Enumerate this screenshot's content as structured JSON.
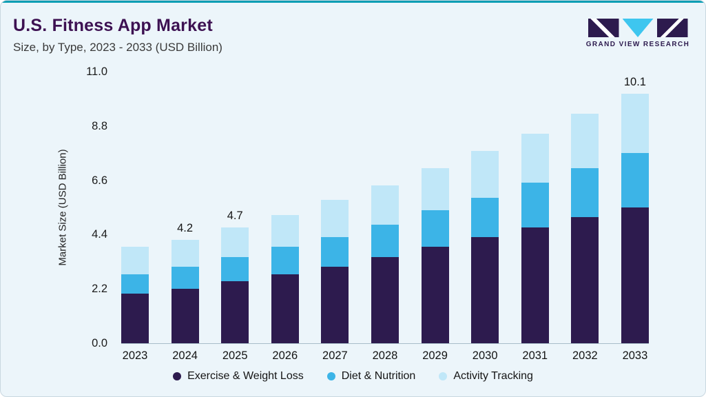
{
  "header": {
    "title": "U.S. Fitness App Market",
    "subtitle": "Size, by Type, 2023 - 2033 (USD Billion)"
  },
  "logo": {
    "text": "GRAND VIEW RESEARCH"
  },
  "colors": {
    "background": "#ecf5fa",
    "top_accent": "#089db3",
    "title": "#3d1152",
    "brand_purple": "#2d1b4e",
    "brand_cyan": "#3ec6ef"
  },
  "chart_data": {
    "type": "bar",
    "stacked": true,
    "title": "U.S. Fitness App Market Size, by Type, 2023 - 2033 (USD Billion)",
    "categories": [
      "2023",
      "2024",
      "2025",
      "2026",
      "2027",
      "2028",
      "2029",
      "2030",
      "2031",
      "2032",
      "2033"
    ],
    "series": [
      {
        "name": "Exercise & Weight Loss",
        "color": "#2d1b4e",
        "values": [
          2.0,
          2.2,
          2.5,
          2.8,
          3.1,
          3.5,
          3.9,
          4.3,
          4.7,
          5.1,
          5.5
        ]
      },
      {
        "name": "Diet & Nutrition",
        "color": "#3cb4e7",
        "values": [
          0.8,
          0.9,
          1.0,
          1.1,
          1.2,
          1.3,
          1.5,
          1.6,
          1.8,
          2.0,
          2.2
        ]
      },
      {
        "name": "Activity Tracking",
        "color": "#c0e7f8",
        "values": [
          1.1,
          1.1,
          1.2,
          1.3,
          1.5,
          1.6,
          1.7,
          1.9,
          2.0,
          2.2,
          2.4
        ]
      }
    ],
    "bar_total_labels": [
      "",
      "4.2",
      "4.7",
      "",
      "",
      "",
      "",
      "",
      "",
      "",
      "10.1"
    ],
    "totals": [
      3.9,
      4.2,
      4.7,
      5.2,
      5.8,
      6.4,
      7.1,
      7.8,
      8.5,
      9.3,
      10.1
    ],
    "xlabel": "",
    "ylabel": "Market Size (USD Billion)",
    "yticks": [
      "0.0",
      "2.2",
      "4.4",
      "6.6",
      "8.8",
      "11.0"
    ],
    "ylim": [
      0,
      11.0
    ],
    "grid": false,
    "legend_position": "bottom"
  }
}
